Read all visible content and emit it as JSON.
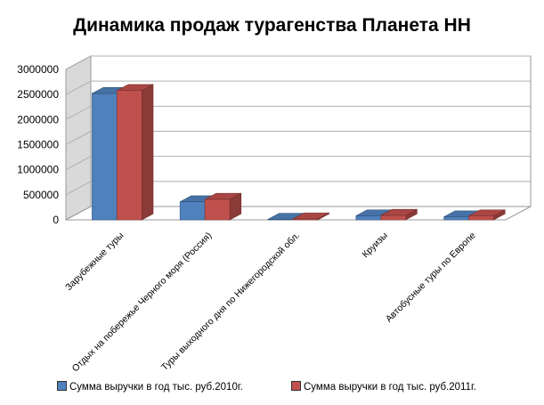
{
  "chart_data": {
    "type": "bar",
    "title": "Динамика продаж турагенства Планета НН",
    "categories": [
      "Зарубежные туры",
      "Отдых на побережье Черного моря (Россия)",
      "Туры выходного дня по Нижегородской обл.",
      "Круизы",
      "Автобусные туры по  Европе"
    ],
    "series": [
      {
        "name": "Сумма выручки в год тыс. руб.2010г.",
        "values": [
          2520000,
          360000,
          10000,
          80000,
          60000
        ],
        "color": "#4F81BD"
      },
      {
        "name": "Сумма выручки в год тыс. руб.2011г.",
        "values": [
          2580000,
          410000,
          20000,
          90000,
          80000
        ],
        "color": "#C0504D"
      }
    ],
    "y_ticks": [
      "0",
      "500000",
      "1000000",
      "1500000",
      "2000000",
      "2500000",
      "3000000"
    ],
    "ylim": [
      0,
      3000000
    ],
    "grid": true,
    "legend_position": "bottom",
    "style": "3d-clustered-column"
  }
}
